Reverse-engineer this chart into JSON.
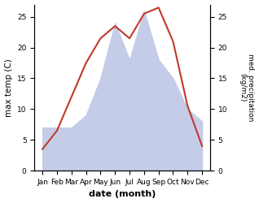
{
  "months": [
    "Jan",
    "Feb",
    "Mar",
    "Apr",
    "May",
    "Jun",
    "Jul",
    "Aug",
    "Sep",
    "Oct",
    "Nov",
    "Dec"
  ],
  "temperature": [
    3.5,
    6.5,
    12.0,
    17.5,
    21.5,
    23.5,
    21.5,
    25.5,
    26.5,
    21.0,
    10.5,
    4.0
  ],
  "precipitation": [
    7,
    7,
    7,
    9,
    15,
    24,
    18,
    26,
    18,
    15,
    10,
    8
  ],
  "temp_color": "#c0392b",
  "precip_fill_color": "#c5cce8",
  "ylabel_left": "max temp (C)",
  "ylabel_right": "med. precipitation\n(kg/m2)",
  "xlabel": "date (month)",
  "ylim_left": [
    0,
    27
  ],
  "ylim_right": [
    0,
    27
  ],
  "yticks_left": [
    0,
    5,
    10,
    15,
    20,
    25
  ],
  "yticks_right": [
    0,
    5,
    10,
    15,
    20,
    25
  ],
  "figsize": [
    3.18,
    2.5
  ],
  "dpi": 100
}
